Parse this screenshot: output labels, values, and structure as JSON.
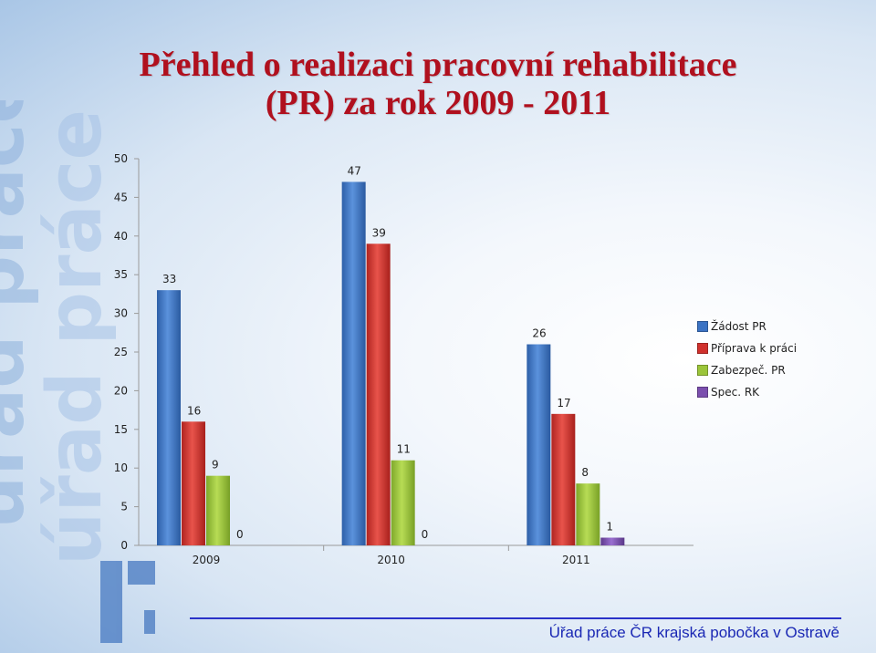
{
  "title_line1": "Přehled o realizaci pracovní rehabilitace",
  "title_line2": "(PR) za rok 2009 - 2011",
  "watermark": "úřad práce",
  "footer": "Úřad práce ČR   krajská pobočka v Ostravě",
  "chart_data": {
    "type": "bar",
    "categories": [
      "2009",
      "2010",
      "2011"
    ],
    "series": [
      {
        "name": "Žádost PR",
        "values": [
          33,
          47,
          26
        ],
        "color": "#3b73c4"
      },
      {
        "name": "Příprava k práci",
        "values": [
          16,
          39,
          17
        ],
        "color": "#d0312d"
      },
      {
        "name": "Zabezpeč. PR",
        "values": [
          9,
          11,
          8
        ],
        "color": "#9bc53a"
      },
      {
        "name": "Spec. RK",
        "values": [
          0,
          0,
          1
        ],
        "color": "#7b4fae"
      }
    ],
    "y_ticks": [
      0,
      5,
      10,
      15,
      20,
      25,
      30,
      35,
      40,
      45,
      50
    ],
    "ylim": [
      0,
      50
    ],
    "grid": false,
    "legend": "right",
    "data_labels": true
  }
}
